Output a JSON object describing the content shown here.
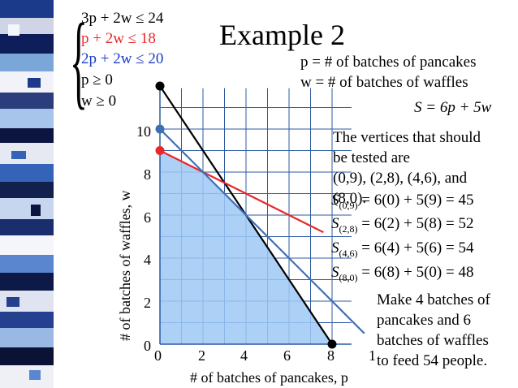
{
  "slide": {
    "title": "Example 2",
    "system": [
      "3p + 2w ≤ 24",
      "p + 2w ≤ 18",
      "2p + 2w ≤ 20",
      "p ≥ 0",
      "w ≥ 0"
    ],
    "legend": {
      "p": "p = # of batches of pancakes",
      "w": "w = # of batches of waffles"
    },
    "objective": "S = 6p + 5w",
    "vertices_text": [
      "The vertices that should",
      "be tested are",
      "(0,9), (2,8), (4,6), and",
      "(8,0)."
    ],
    "evaluations": [
      {
        "sub": "(0,9)",
        "expr": "= 6(0) + 5(9) = 45"
      },
      {
        "sub": "(2,8)",
        "expr": "= 6(2) + 5(8) = 52"
      },
      {
        "sub": "(4,6)",
        "expr": "= 6(4) + 5(6) = 54"
      },
      {
        "sub": "(8,0)",
        "expr": "= 6(8) + 5(0) = 48"
      }
    ],
    "conclusion": [
      "Make 4 batches of",
      "pancakes and 6",
      "batches of waffles",
      "to feed 54 people."
    ],
    "x_axis_label": "# of batches of pancakes, p",
    "y_axis_label": "# of batches of waffles, w",
    "x_ticks": [
      "0",
      "2",
      "4",
      "6",
      "8",
      "1"
    ],
    "y_ticks": [
      "0",
      "2",
      "4",
      "6",
      "8",
      "10"
    ],
    "colors": {
      "red": "#e8272a",
      "black": "#000000",
      "blue": "#3f6eb4",
      "feasible": "#9ec8f5",
      "title_red": "#e8272a",
      "blue_text": "#1a3cc8"
    }
  },
  "chart_data": {
    "type": "line",
    "xlim": [
      0,
      8.9
    ],
    "ylim": [
      0,
      11.9
    ],
    "series": [
      {
        "constraint": "3p + 2w ≤ 24",
        "color": "#000000",
        "x": [
          0,
          8
        ],
        "y": [
          12,
          0
        ]
      },
      {
        "constraint": "p + 2w ≤ 18",
        "color": "#e8272a",
        "x": [
          0,
          7.6
        ],
        "y": [
          9,
          5.2
        ]
      },
      {
        "constraint": "2p + 2w ≤ 20",
        "color": "#3f6eb4",
        "x": [
          0,
          9.5
        ],
        "y": [
          10,
          0.5
        ]
      }
    ],
    "feasible_region": [
      [
        0,
        0
      ],
      [
        0,
        9
      ],
      [
        2,
        8
      ],
      [
        4,
        6
      ],
      [
        8,
        0
      ]
    ],
    "points": [
      {
        "x": 0,
        "y": 12,
        "color": "#000000"
      },
      {
        "x": 0,
        "y": 10,
        "color": "#3f6eb4"
      },
      {
        "x": 0,
        "y": 9,
        "color": "#e8272a"
      },
      {
        "x": 8,
        "y": 0,
        "color": "#000000"
      }
    ]
  }
}
